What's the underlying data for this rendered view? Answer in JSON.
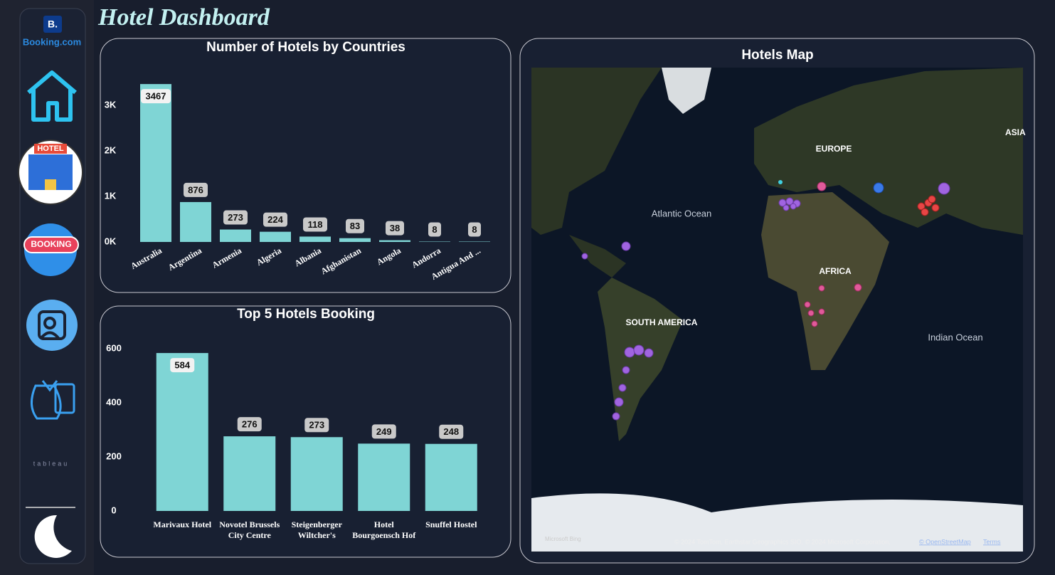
{
  "title": "Hotel Dashboard",
  "sidebar": {
    "logo_mark": "B.",
    "logo_text": "Booking.com",
    "hotel_icon": "HOTEL",
    "booking_icon": "BOOKING",
    "tableau": "tableau"
  },
  "chart_data": [
    {
      "type": "bar",
      "title": "Number of Hotels by Countries",
      "categories": [
        "Australia",
        "Argentina",
        "Armenia",
        "Algeria",
        "Albania",
        "Afghanistan",
        "Angola",
        "Andorra",
        "Antigua And ..."
      ],
      "values": [
        3467,
        876,
        273,
        224,
        118,
        83,
        38,
        8,
        8
      ],
      "color": "#7fd5d5",
      "ylim": [
        0,
        3500
      ],
      "yticks": [
        {
          "value": 0,
          "label": "0K"
        },
        {
          "value": 1000,
          "label": "1K"
        },
        {
          "value": 2000,
          "label": "2K"
        },
        {
          "value": 3000,
          "label": "3K"
        }
      ]
    },
    {
      "type": "bar",
      "title": "Top 5 Hotels Booking",
      "categories": [
        "Marivaux Hotel",
        "Novotel Brussels City Centre",
        "Steigenberger Wiltcher's",
        "Hotel Bourgoensch Hof",
        "Snuffel Hostel"
      ],
      "values": [
        584,
        276,
        273,
        249,
        248
      ],
      "color": "#7fd5d5",
      "ylim": [
        0,
        600
      ],
      "yticks": [
        0,
        200,
        400,
        600
      ]
    }
  ],
  "map": {
    "title": "Hotels Map",
    "labels": [
      "EUROPE",
      "ASIA",
      "Atlantic Ocean",
      "AFRICA",
      "SOUTH AMERICA",
      "Indian Ocean"
    ],
    "brand": "Microsoft Bing",
    "attribution": "© 2024 TomTom, Earthstar Geographics SIO, © 2024 Microsoft Corporation,",
    "osm": "© OpenStreetMap",
    "terms": "Terms"
  }
}
